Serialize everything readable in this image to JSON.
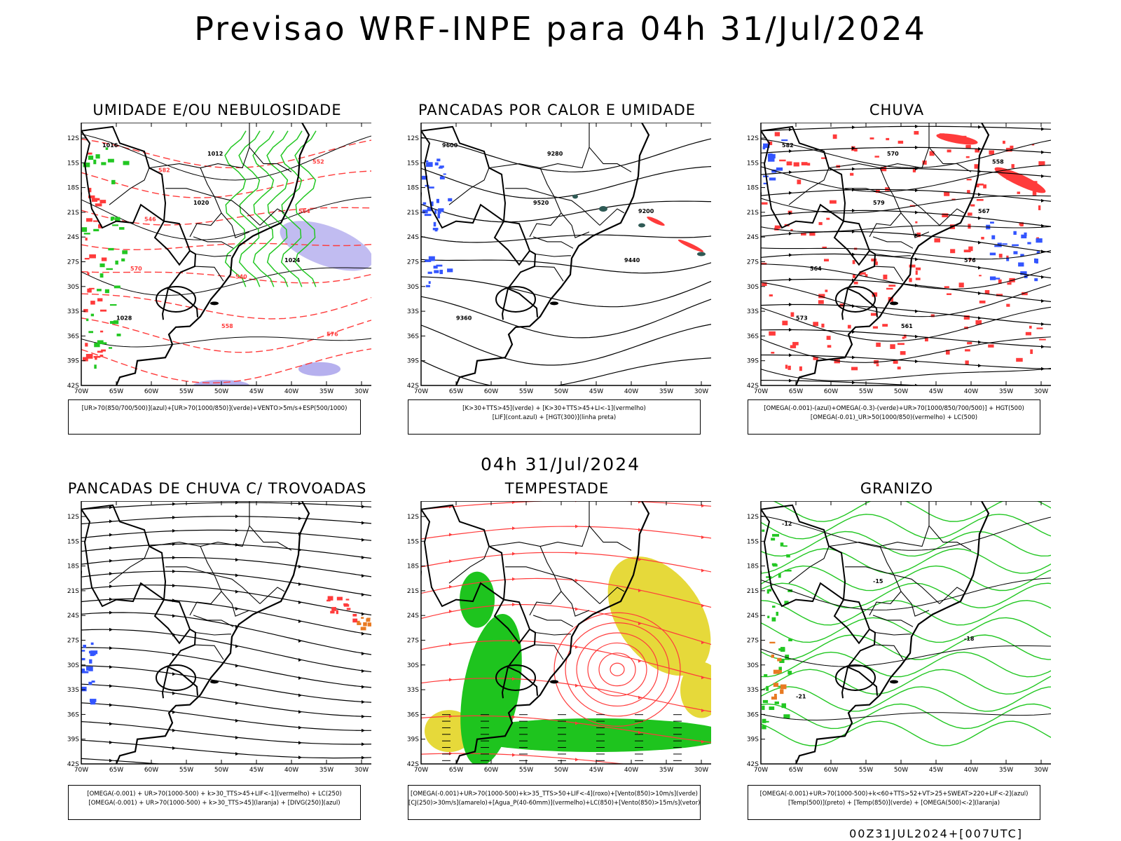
{
  "header": {
    "title": "Previsao WRF-INPE  para 04h 31/Jul/2024"
  },
  "mid_title": "04h 31/Jul/2024",
  "footer": "00Z31JUL2024+[007UTC]",
  "axes": {
    "lat_labels": [
      "12S",
      "15S",
      "18S",
      "21S",
      "24S",
      "27S",
      "30S",
      "33S",
      "36S",
      "39S",
      "42S"
    ],
    "lon_labels": [
      "70W",
      "65W",
      "60W",
      "55W",
      "50W",
      "45W",
      "40W",
      "35W",
      "30W"
    ]
  },
  "panels": [
    {
      "title": "UMIDADE E/OU NEBULOSIDADE",
      "legend": [
        "[UR>70(850/700/500)](azul)+[UR>70(1000/850)](verde)+VENTO>5m/s+ESP(500/1000)"
      ],
      "contour_labels": [
        "1016",
        "1020",
        "1024",
        "1028",
        "1012",
        "564",
        "570",
        "558",
        "552",
        "546",
        "540",
        "576",
        "582"
      ]
    },
    {
      "title": "PANCADAS POR CALOR E UMIDADE",
      "legend": [
        "[K>30+TTS>45](verde) + [K>30+TTS>45+LI<-1](vermelho)",
        "[LIF](cont.azul) + [HGT(300)](linha preta)"
      ],
      "contour_labels": [
        "9600",
        "9520",
        "9440",
        "9360",
        "9280",
        "9200"
      ]
    },
    {
      "title": "CHUVA",
      "legend": [
        "[OMEGA(-0.001)-(azul)+OMEGA(-0.3)-(verde)+UR>70(1000/850/700/500)] + HGT(500)",
        "[OMEGA(-0.01)_UR>50(1000/850)(vermelho) + LC(500)"
      ],
      "contour_labels": [
        "582",
        "579",
        "576",
        "573",
        "570",
        "567",
        "564",
        "561",
        "558"
      ]
    },
    {
      "title": "PANCADAS DE CHUVA C/ TROVOADAS",
      "legend": [
        "[OMEGA(-0.001) + UR>70(1000-500) + k>30_TTS>45+LIF<-1](vermelho) + LC(250)",
        "[OMEGA(-0.001) + UR>70(1000-500) + k>30_TTS>45](laranja) + [DIVG(250)](azul)"
      ],
      "contour_labels": []
    },
    {
      "title": "TEMPESTADE",
      "legend": [
        "[OMEGA(-0.001)+UR>70(1000-500)+k>35_TTS>50+LIF<-4](roxo)+[Vento(850)>10m/s](verde)",
        "[CJ(250)>30m/s](amarelo)+[Agua_P(40-60mm)](vermelho)+LC(850)+[Vento(850)>15m/s](vetor)"
      ],
      "contour_labels": []
    },
    {
      "title": "GRANIZO",
      "legend": [
        "[OMEGA(-0.001)+UR>70(1000-500)+k<60+TTS>52+VT>25+SWEAT>220+LIF<-2](azul)",
        "[Temp(500)](preto) + [Temp(850)](verde) + [OMEGA(500)<-2](laranja)"
      ],
      "contour_labels": [
        "-12",
        "-15",
        "-18",
        "-21"
      ]
    }
  ],
  "colors": {
    "red": "#ff3b3b",
    "green": "#22c722",
    "blue": "#3355ff",
    "lavender": "#b6b0ee",
    "yellow": "#e6d93a",
    "orange": "#e87a22",
    "teal": "#2f5a55",
    "bright_green": "#1ec41e"
  }
}
